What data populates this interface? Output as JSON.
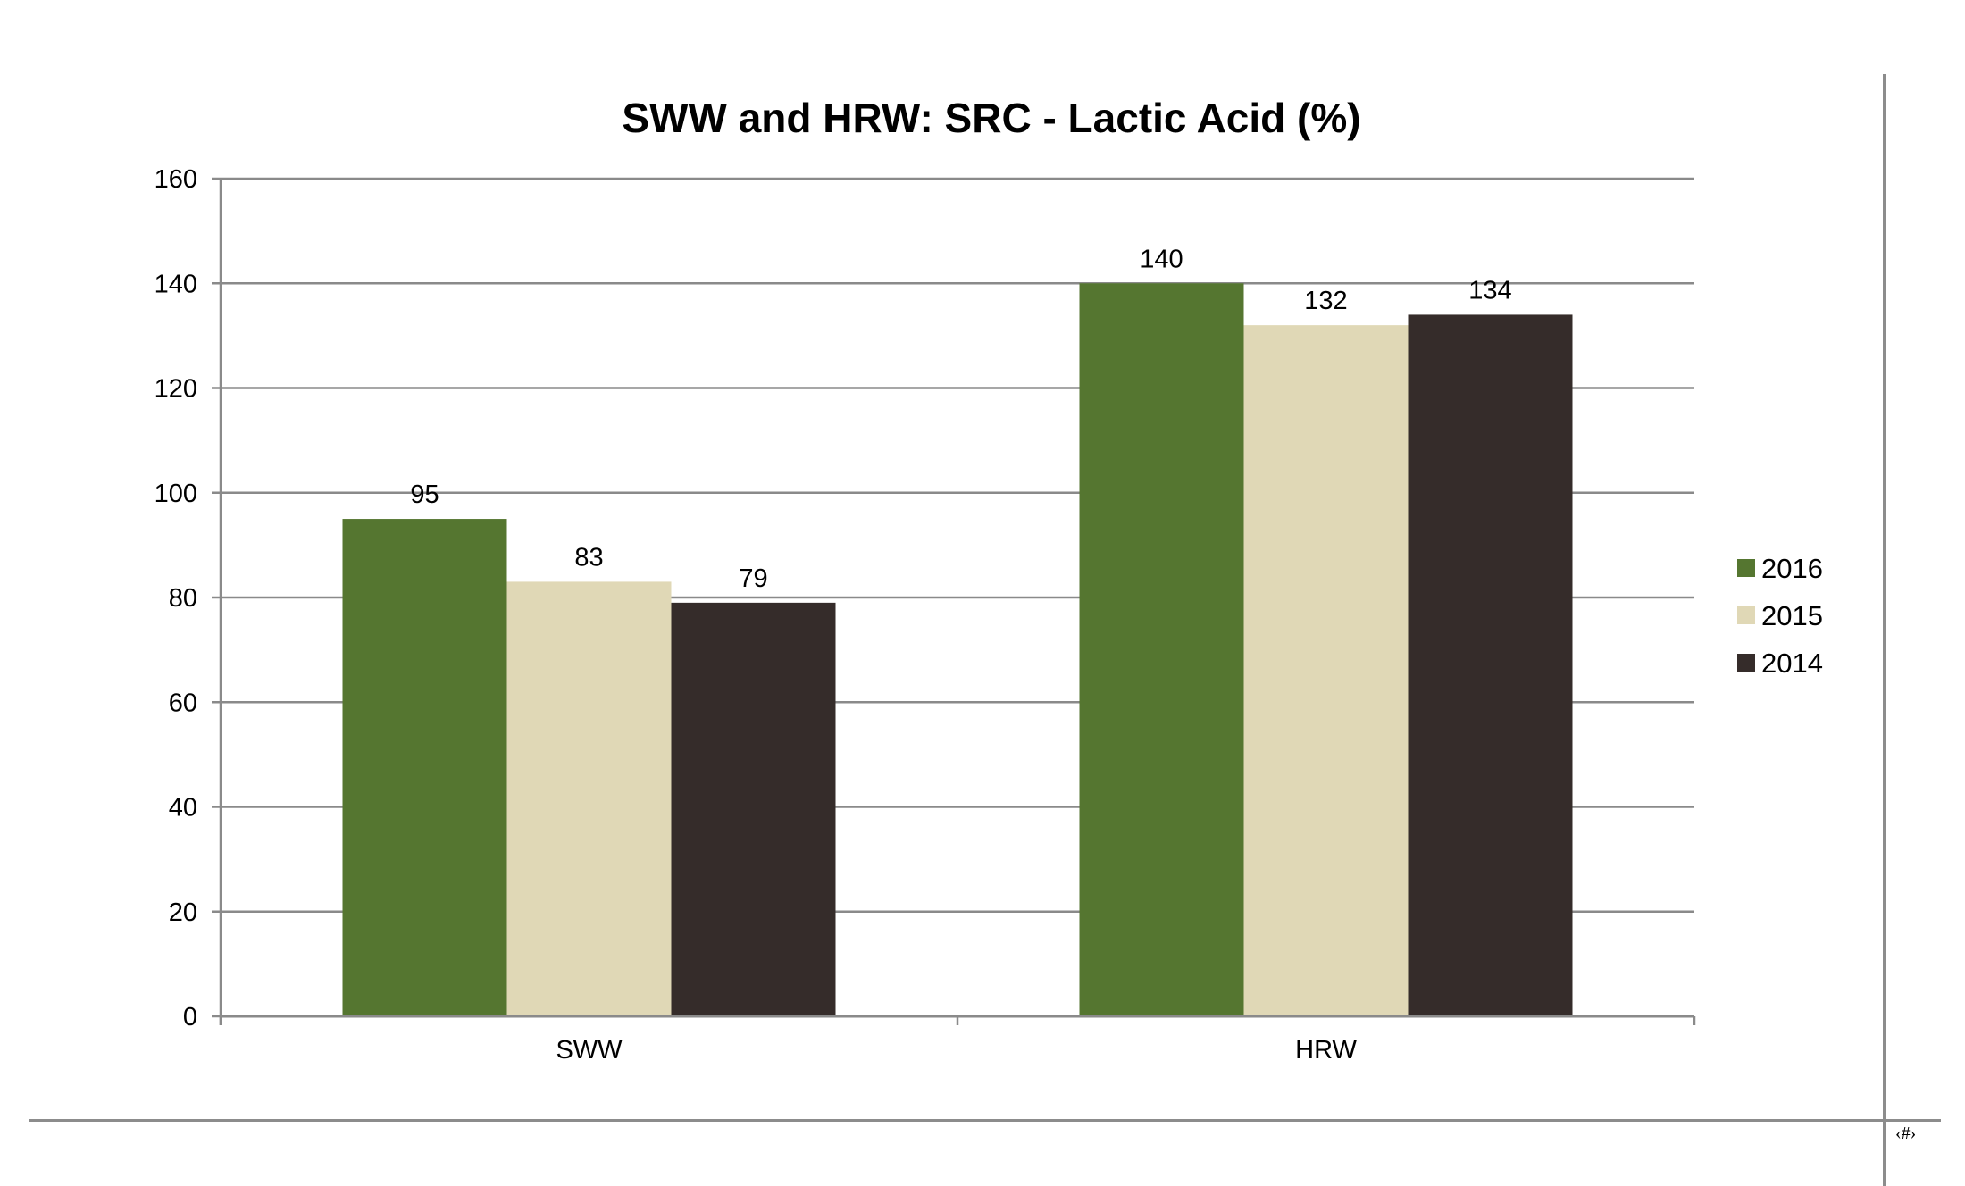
{
  "slide": {
    "page_number": "‹#›"
  },
  "colors": {
    "gridline": "#8a8a8a",
    "axis": "#8a8a8a",
    "frame": "#8c8c8c",
    "text": "#000000"
  },
  "chart_data": {
    "type": "bar",
    "title": "SWW and HRW:  SRC - Lactic Acid (%)",
    "xlabel": "",
    "ylabel": "",
    "categories": [
      "SWW",
      "HRW"
    ],
    "series": [
      {
        "name": "2016",
        "values": [
          95,
          140
        ],
        "color": "#557630"
      },
      {
        "name": "2015",
        "values": [
          83,
          132
        ],
        "color": "#e0d8b6"
      },
      {
        "name": "2014",
        "values": [
          79,
          134
        ],
        "color": "#352c2a"
      }
    ],
    "ylim": [
      0,
      160
    ],
    "yticks": [
      0,
      20,
      40,
      60,
      80,
      100,
      120,
      140,
      160
    ],
    "grid": true,
    "legend": "right",
    "data_labels": true
  }
}
